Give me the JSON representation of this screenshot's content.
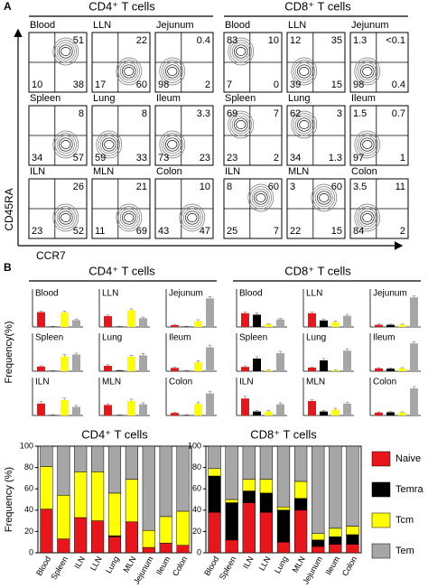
{
  "flow": {
    "panel_label": "A",
    "xlabel": "CCR7",
    "ylabel": "CD45RA",
    "groups": [
      {
        "title": "CD4⁺ T cells",
        "plots": [
          {
            "name": "Blood",
            "q": {
              "tr": 51,
              "bl": 10,
              "br": 38
            }
          },
          {
            "name": "LLN",
            "q": {
              "tr": 22,
              "bl": 17,
              "br": 60
            }
          },
          {
            "name": "Jejunum",
            "q": {
              "tr": 0.4,
              "bl": 98,
              "br": 2
            }
          },
          {
            "name": "Spleen",
            "q": {
              "tr": 8,
              "bl": 34,
              "br": 57
            }
          },
          {
            "name": "Lung",
            "q": {
              "tr": 8,
              "bl": 59,
              "br": 33
            }
          },
          {
            "name": "Ileum",
            "q": {
              "tr": 3.3,
              "bl": 73,
              "br": 23
            }
          },
          {
            "name": "ILN",
            "q": {
              "tr": 26,
              "bl": 23,
              "br": 52
            }
          },
          {
            "name": "MLN",
            "q": {
              "tr": 21,
              "bl": 11,
              "br": 69
            }
          },
          {
            "name": "Colon",
            "q": {
              "tr": 10,
              "bl": 43,
              "br": 47
            }
          }
        ]
      },
      {
        "title": "CD8⁺ T cells",
        "plots": [
          {
            "name": "Blood",
            "q": {
              "tl": 83,
              "tr": 10,
              "bl": 7,
              "br": 0
            }
          },
          {
            "name": "LLN",
            "q": {
              "tl": 12,
              "tr": 35,
              "bl": 39,
              "br": 15
            }
          },
          {
            "name": "Jejunum",
            "q": {
              "tl": 1.3,
              "tr": "<0.1",
              "bl": 98,
              "br": 0.4
            }
          },
          {
            "name": "Spleen",
            "q": {
              "tl": 69,
              "tr": 7,
              "bl": 23,
              "br": 2
            }
          },
          {
            "name": "Lung",
            "q": {
              "tl": 62,
              "tr": 3,
              "bl": 34,
              "br": 1.3
            }
          },
          {
            "name": "Ileum",
            "q": {
              "tl": 1.5,
              "tr": 0.7,
              "bl": 97,
              "br": 1
            }
          },
          {
            "name": "ILN",
            "q": {
              "tl": 8,
              "tr": 60,
              "bl": 25,
              "br": 7
            }
          },
          {
            "name": "MLN",
            "q": {
              "tl": 3,
              "tr": 60,
              "bl": 22,
              "br": 15
            }
          },
          {
            "name": "Colon",
            "q": {
              "tl": 3.5,
              "tr": 11,
              "bl": 84,
              "br": 2
            }
          }
        ]
      }
    ]
  },
  "panel_b_label": "B",
  "chart_data": [
    {
      "type": "bar",
      "title": "CD4⁺ T cells",
      "ylabel": "Frequency(%)",
      "ylim": [
        0,
        100
      ],
      "colors": [
        "#e8151b",
        "#000000",
        "#ffff00",
        "#a6a6a6"
      ],
      "panels": [
        {
          "title": "Blood",
          "values": [
            41,
            1,
            40,
            19
          ],
          "errors": [
            3,
            1,
            4,
            3
          ]
        },
        {
          "title": "LLN",
          "values": [
            30,
            1,
            46,
            24
          ],
          "errors": [
            3,
            1,
            4,
            3
          ]
        },
        {
          "title": "Jejunum",
          "values": [
            5,
            1,
            16,
            79
          ],
          "errors": [
            2,
            1,
            4,
            5
          ]
        },
        {
          "title": "Spleen",
          "values": [
            13,
            1,
            41,
            46
          ],
          "errors": [
            2,
            1,
            5,
            4
          ]
        },
        {
          "title": "Lung",
          "values": [
            15,
            2,
            40,
            44
          ],
          "errors": [
            3,
            1,
            4,
            5
          ]
        },
        {
          "title": "Ileum",
          "values": [
            9,
            1,
            25,
            66
          ],
          "errors": [
            2,
            1,
            4,
            6
          ]
        },
        {
          "title": "ILN",
          "values": [
            33,
            1,
            43,
            24
          ],
          "errors": [
            5,
            1,
            5,
            4
          ]
        },
        {
          "title": "MLN",
          "values": [
            29,
            1,
            40,
            31
          ],
          "errors": [
            3,
            1,
            5,
            4
          ]
        },
        {
          "title": "Colon",
          "values": [
            7,
            1,
            32,
            61
          ],
          "errors": [
            2,
            1,
            5,
            6
          ]
        }
      ]
    },
    {
      "type": "bar",
      "title": "CD8⁺ T cells",
      "ylim": [
        0,
        100
      ],
      "colors": [
        "#e8151b",
        "#000000",
        "#ffff00",
        "#a6a6a6"
      ],
      "panels": [
        {
          "title": "Blood",
          "values": [
            38,
            34,
            7,
            21
          ],
          "errors": [
            3,
            5,
            2,
            3
          ]
        },
        {
          "title": "LLN",
          "values": [
            38,
            18,
            13,
            31
          ],
          "errors": [
            4,
            4,
            3,
            4
          ]
        },
        {
          "title": "Jejunum",
          "values": [
            6,
            6,
            6,
            82
          ],
          "errors": [
            2,
            2,
            2,
            4
          ]
        },
        {
          "title": "Spleen",
          "values": [
            12,
            35,
            3,
            50
          ],
          "errors": [
            3,
            5,
            1,
            5
          ]
        },
        {
          "title": "Lung",
          "values": [
            10,
            30,
            3,
            57
          ],
          "errors": [
            2,
            5,
            1,
            5
          ]
        },
        {
          "title": "Ileum",
          "values": [
            8,
            7,
            8,
            77
          ],
          "errors": [
            2,
            2,
            2,
            5
          ]
        },
        {
          "title": "ILN",
          "values": [
            47,
            11,
            11,
            31
          ],
          "errors": [
            6,
            3,
            3,
            4
          ]
        },
        {
          "title": "MLN",
          "values": [
            40,
            11,
            16,
            33
          ],
          "errors": [
            4,
            3,
            4,
            4
          ]
        },
        {
          "title": "Colon",
          "values": [
            8,
            9,
            8,
            75
          ],
          "errors": [
            2,
            2,
            2,
            5
          ]
        }
      ]
    },
    {
      "type": "stacked-bar",
      "title": "CD4⁺ T cells",
      "ylabel": "Frequency (%)",
      "categories": [
        "Blood",
        "Spleen",
        "ILN",
        "LLN",
        "Lung",
        "MLN",
        "Jejunum",
        "Ileum",
        "Colon"
      ],
      "series": [
        {
          "color": "#e8151b",
          "values": [
            41,
            13,
            33,
            30,
            15,
            29,
            5,
            9,
            7
          ]
        },
        {
          "color": "#000000",
          "values": [
            0,
            0,
            0,
            0,
            1,
            0,
            0,
            0,
            0
          ]
        },
        {
          "color": "#ffff00",
          "values": [
            40,
            41,
            43,
            46,
            40,
            40,
            16,
            25,
            32
          ]
        },
        {
          "color": "#a6a6a6",
          "values": [
            19,
            46,
            24,
            24,
            44,
            31,
            79,
            66,
            61
          ]
        }
      ],
      "ylim": [
        0,
        100
      ],
      "yticks": [
        0,
        20,
        40,
        60,
        80,
        100
      ]
    },
    {
      "type": "stacked-bar",
      "title": "CD8⁺ T cells",
      "categories": [
        "Blood",
        "Spleen",
        "ILN",
        "LLN",
        "Lung",
        "MLN",
        "Jejunum",
        "Ileum",
        "Colon"
      ],
      "series": [
        {
          "name": "Naive",
          "color": "#e8151b",
          "values": [
            38,
            12,
            47,
            38,
            10,
            40,
            6,
            8,
            8
          ]
        },
        {
          "name": "Temra",
          "color": "#000000",
          "values": [
            34,
            35,
            11,
            18,
            30,
            11,
            6,
            7,
            9
          ]
        },
        {
          "name": "Tcm",
          "color": "#ffff00",
          "values": [
            7,
            3,
            11,
            13,
            3,
            16,
            6,
            8,
            8
          ]
        },
        {
          "name": "Tem",
          "color": "#a6a6a6",
          "values": [
            21,
            50,
            31,
            31,
            57,
            33,
            82,
            77,
            75
          ]
        }
      ],
      "ylim": [
        0,
        100
      ],
      "yticks": [
        0,
        20,
        40,
        60,
        80,
        100
      ],
      "legend": "right"
    }
  ]
}
